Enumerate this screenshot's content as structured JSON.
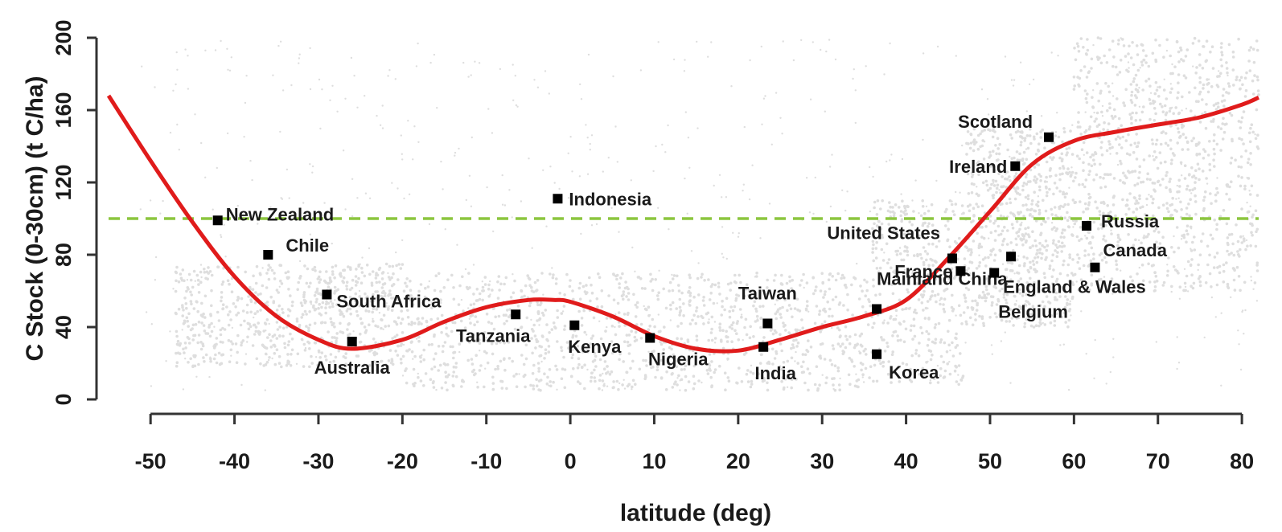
{
  "chart_data": {
    "type": "scatter",
    "xlabel": "latitude (deg)",
    "ylabel": "C Stock (0-30cm) (t C/ha)",
    "xlim": [
      -55,
      82
    ],
    "ylim": [
      0,
      200
    ],
    "x_ticks": [
      -50,
      -40,
      -30,
      -20,
      -10,
      0,
      10,
      20,
      30,
      40,
      50,
      60,
      70,
      80
    ],
    "y_ticks": [
      0,
      40,
      80,
      120,
      160,
      200
    ],
    "grid": false,
    "colors": {
      "fitted_curve": "#e01b1b",
      "reference_line": "#8cc63f",
      "background_cloud": "#d9d9d9",
      "points": "#000000"
    },
    "reference_line_y": 100,
    "countries": [
      {
        "name": "New Zealand",
        "lat": -42,
        "c_stock": 99
      },
      {
        "name": "Chile",
        "lat": -36,
        "c_stock": 80
      },
      {
        "name": "South Africa",
        "lat": -29,
        "c_stock": 58
      },
      {
        "name": "Australia",
        "lat": -26,
        "c_stock": 32
      },
      {
        "name": "Tanzania",
        "lat": -6.5,
        "c_stock": 47
      },
      {
        "name": "Indonesia",
        "lat": -1.5,
        "c_stock": 111
      },
      {
        "name": "Kenya",
        "lat": 0.5,
        "c_stock": 41
      },
      {
        "name": "Nigeria",
        "lat": 9.5,
        "c_stock": 34
      },
      {
        "name": "India",
        "lat": 23,
        "c_stock": 29
      },
      {
        "name": "Taiwan",
        "lat": 23.5,
        "c_stock": 42
      },
      {
        "name": "Mainland China",
        "lat": 36.5,
        "c_stock": 50
      },
      {
        "name": "Korea",
        "lat": 36.5,
        "c_stock": 25
      },
      {
        "name": "United States",
        "lat": 45.5,
        "c_stock": 78
      },
      {
        "name": "France",
        "lat": 46.5,
        "c_stock": 71
      },
      {
        "name": "England & Wales",
        "lat": 52.5,
        "c_stock": 79
      },
      {
        "name": "Belgium",
        "lat": 50.5,
        "c_stock": 70
      },
      {
        "name": "Ireland",
        "lat": 53,
        "c_stock": 129
      },
      {
        "name": "Scotland",
        "lat": 57,
        "c_stock": 145
      },
      {
        "name": "Russia",
        "lat": 61.5,
        "c_stock": 96
      },
      {
        "name": "Canada",
        "lat": 62.5,
        "c_stock": 73
      }
    ],
    "fitted_curve": {
      "x": [
        -55,
        -50,
        -45,
        -40,
        -35,
        -30,
        -26,
        -20,
        -15,
        -10,
        -5,
        -2,
        0,
        5,
        10,
        15,
        20,
        25,
        30,
        35,
        40,
        45,
        50,
        55,
        60,
        65,
        70,
        75,
        80,
        82
      ],
      "y": [
        168,
        132,
        98,
        68,
        46,
        33,
        28,
        33,
        43,
        51,
        55,
        55,
        54,
        46,
        35,
        28,
        27,
        33,
        40,
        46,
        55,
        78,
        104,
        130,
        143,
        148,
        152,
        156,
        163,
        167
      ]
    }
  }
}
